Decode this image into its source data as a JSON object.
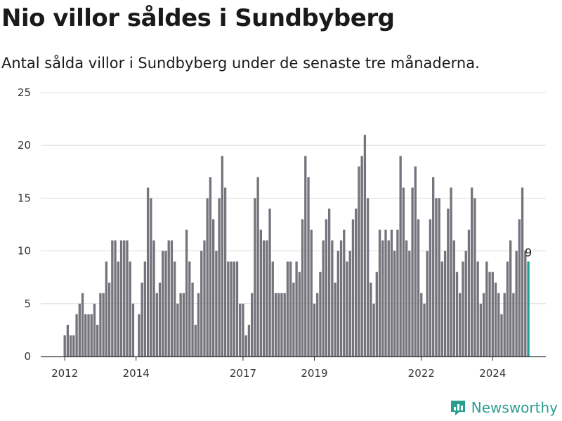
{
  "title": "Nio villor såldes i Sundbyberg",
  "subtitle": "Antal sålda villor i Sundbyberg under de senaste tre månaderna.",
  "brand": "Newsworthy",
  "colors": {
    "bar": "#75737b",
    "highlight": "#1f9e92",
    "grid": "#dddddd",
    "axis": "#333333",
    "brand": "#2a9d8f"
  },
  "chart_data": {
    "type": "bar",
    "ylim": [
      0,
      25
    ],
    "yticks": [
      "0",
      "5",
      "10",
      "15",
      "20",
      "25"
    ],
    "xticks": [
      {
        "label": "2012",
        "x": "2012-01"
      },
      {
        "label": "2014",
        "x": "2014-01"
      },
      {
        "label": "2017",
        "x": "2017-01"
      },
      {
        "label": "2019",
        "x": "2019-01"
      },
      {
        "label": "2022",
        "x": "2022-01"
      },
      {
        "label": "2024",
        "x": "2024-01"
      }
    ],
    "series": [
      {
        "start": "2012-01",
        "values": [
          2,
          3,
          2,
          2,
          4,
          5,
          6,
          4,
          4,
          4,
          5,
          3,
          6,
          6,
          9,
          7,
          11,
          11,
          9,
          11,
          11,
          11,
          9,
          5,
          0,
          4,
          7,
          9,
          16,
          15,
          11,
          6,
          7,
          10,
          10,
          11,
          11,
          9,
          5,
          6,
          6,
          12,
          9,
          7,
          3,
          6,
          10,
          11,
          15,
          17,
          13,
          10,
          15,
          19,
          16,
          9,
          9,
          9,
          9,
          5,
          5,
          2,
          3,
          6,
          15,
          17,
          12,
          11,
          11,
          14,
          9,
          6,
          6,
          6,
          6,
          9,
          9,
          7,
          9,
          8,
          13,
          19,
          17,
          12,
          5,
          6,
          8,
          11,
          13,
          14,
          11,
          7,
          10,
          11,
          12,
          9,
          10,
          13,
          14,
          18,
          19,
          21,
          15,
          7,
          5,
          8,
          12,
          11,
          12,
          11,
          12,
          10,
          12,
          19,
          16,
          11,
          10,
          16,
          18,
          13,
          6,
          5,
          10,
          13,
          17,
          15,
          15,
          9,
          10,
          14,
          16,
          11,
          8,
          6,
          9,
          10,
          12,
          16,
          15,
          9,
          5,
          6,
          9,
          8,
          8,
          7,
          6,
          4,
          6,
          9,
          11,
          6,
          10,
          13,
          16,
          10,
          9
        ],
        "highlight_last": true
      }
    ],
    "last_value_label": "9"
  }
}
